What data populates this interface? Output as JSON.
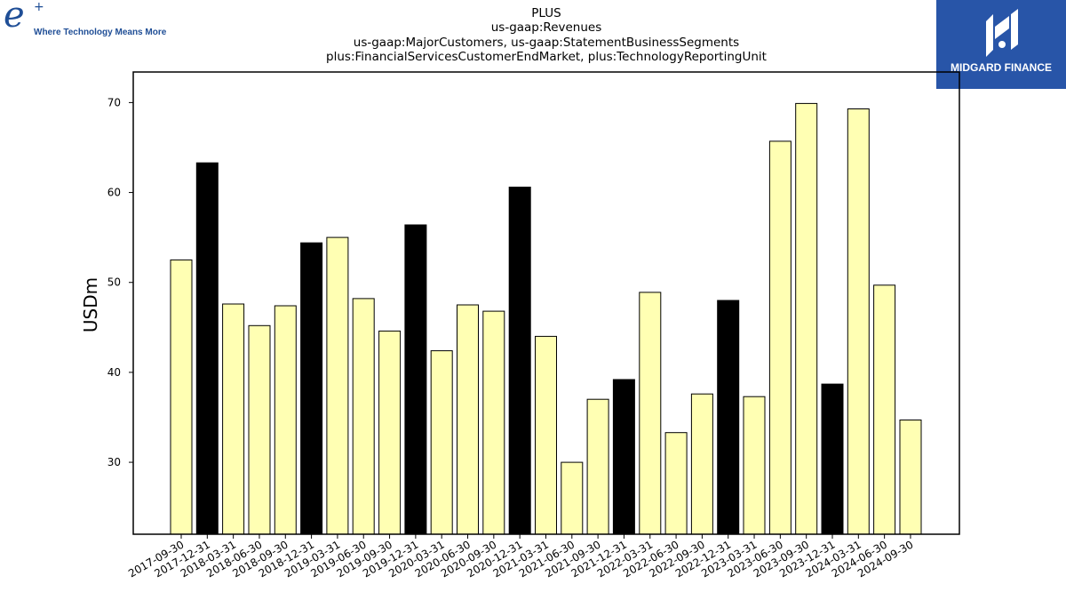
{
  "logos": {
    "left_mark": "e",
    "left_plus": "+",
    "left_tagline": "Where Technology Means More",
    "right_name": "MIDGARD FINANCE",
    "left_color": "#1f4e96",
    "right_color": "#2855a8"
  },
  "title_lines": [
    "PLUS",
    "us-gaap:Revenues",
    "us-gaap:MajorCustomers, us-gaap:StatementBusinessSegments",
    "plus:FinancialServicesCustomerEndMarket, plus:TechnologyReportingUnit"
  ],
  "chart_data": {
    "type": "bar",
    "title": "PLUS",
    "xlabel": "",
    "ylabel": "USDm",
    "ylim": [
      22,
      73.4
    ],
    "yticks": [
      30,
      40,
      50,
      60,
      70
    ],
    "grid": false,
    "categories": [
      "2017-09-30",
      "2017-12-31",
      "2018-03-31",
      "2018-06-30",
      "2018-09-30",
      "2018-12-31",
      "2019-03-31",
      "2019-06-30",
      "2019-09-30",
      "2019-12-31",
      "2020-03-31",
      "2020-06-30",
      "2020-09-30",
      "2020-12-31",
      "2021-03-31",
      "2021-06-30",
      "2021-09-30",
      "2021-12-31",
      "2022-03-31",
      "2022-06-30",
      "2022-09-30",
      "2022-12-31",
      "2023-03-31",
      "2023-06-30",
      "2023-09-30",
      "2023-12-31",
      "2024-03-31",
      "2024-06-30",
      "2024-09-30"
    ],
    "values": [
      52.5,
      63.3,
      47.6,
      45.2,
      47.4,
      54.4,
      55.0,
      48.2,
      44.6,
      56.4,
      42.4,
      47.5,
      46.8,
      60.6,
      44.0,
      30.0,
      37.0,
      39.2,
      48.9,
      33.3,
      37.6,
      48.0,
      37.3,
      65.7,
      69.9,
      38.7,
      69.3,
      49.7,
      34.7
    ],
    "highlight": [
      false,
      true,
      false,
      false,
      false,
      true,
      false,
      false,
      false,
      true,
      false,
      false,
      false,
      true,
      false,
      false,
      false,
      true,
      false,
      false,
      false,
      true,
      false,
      false,
      false,
      true,
      false,
      false,
      false
    ],
    "colors": {
      "bar": "#ffffb3",
      "highlight_bar": "#000000",
      "edge": "#000000"
    }
  }
}
